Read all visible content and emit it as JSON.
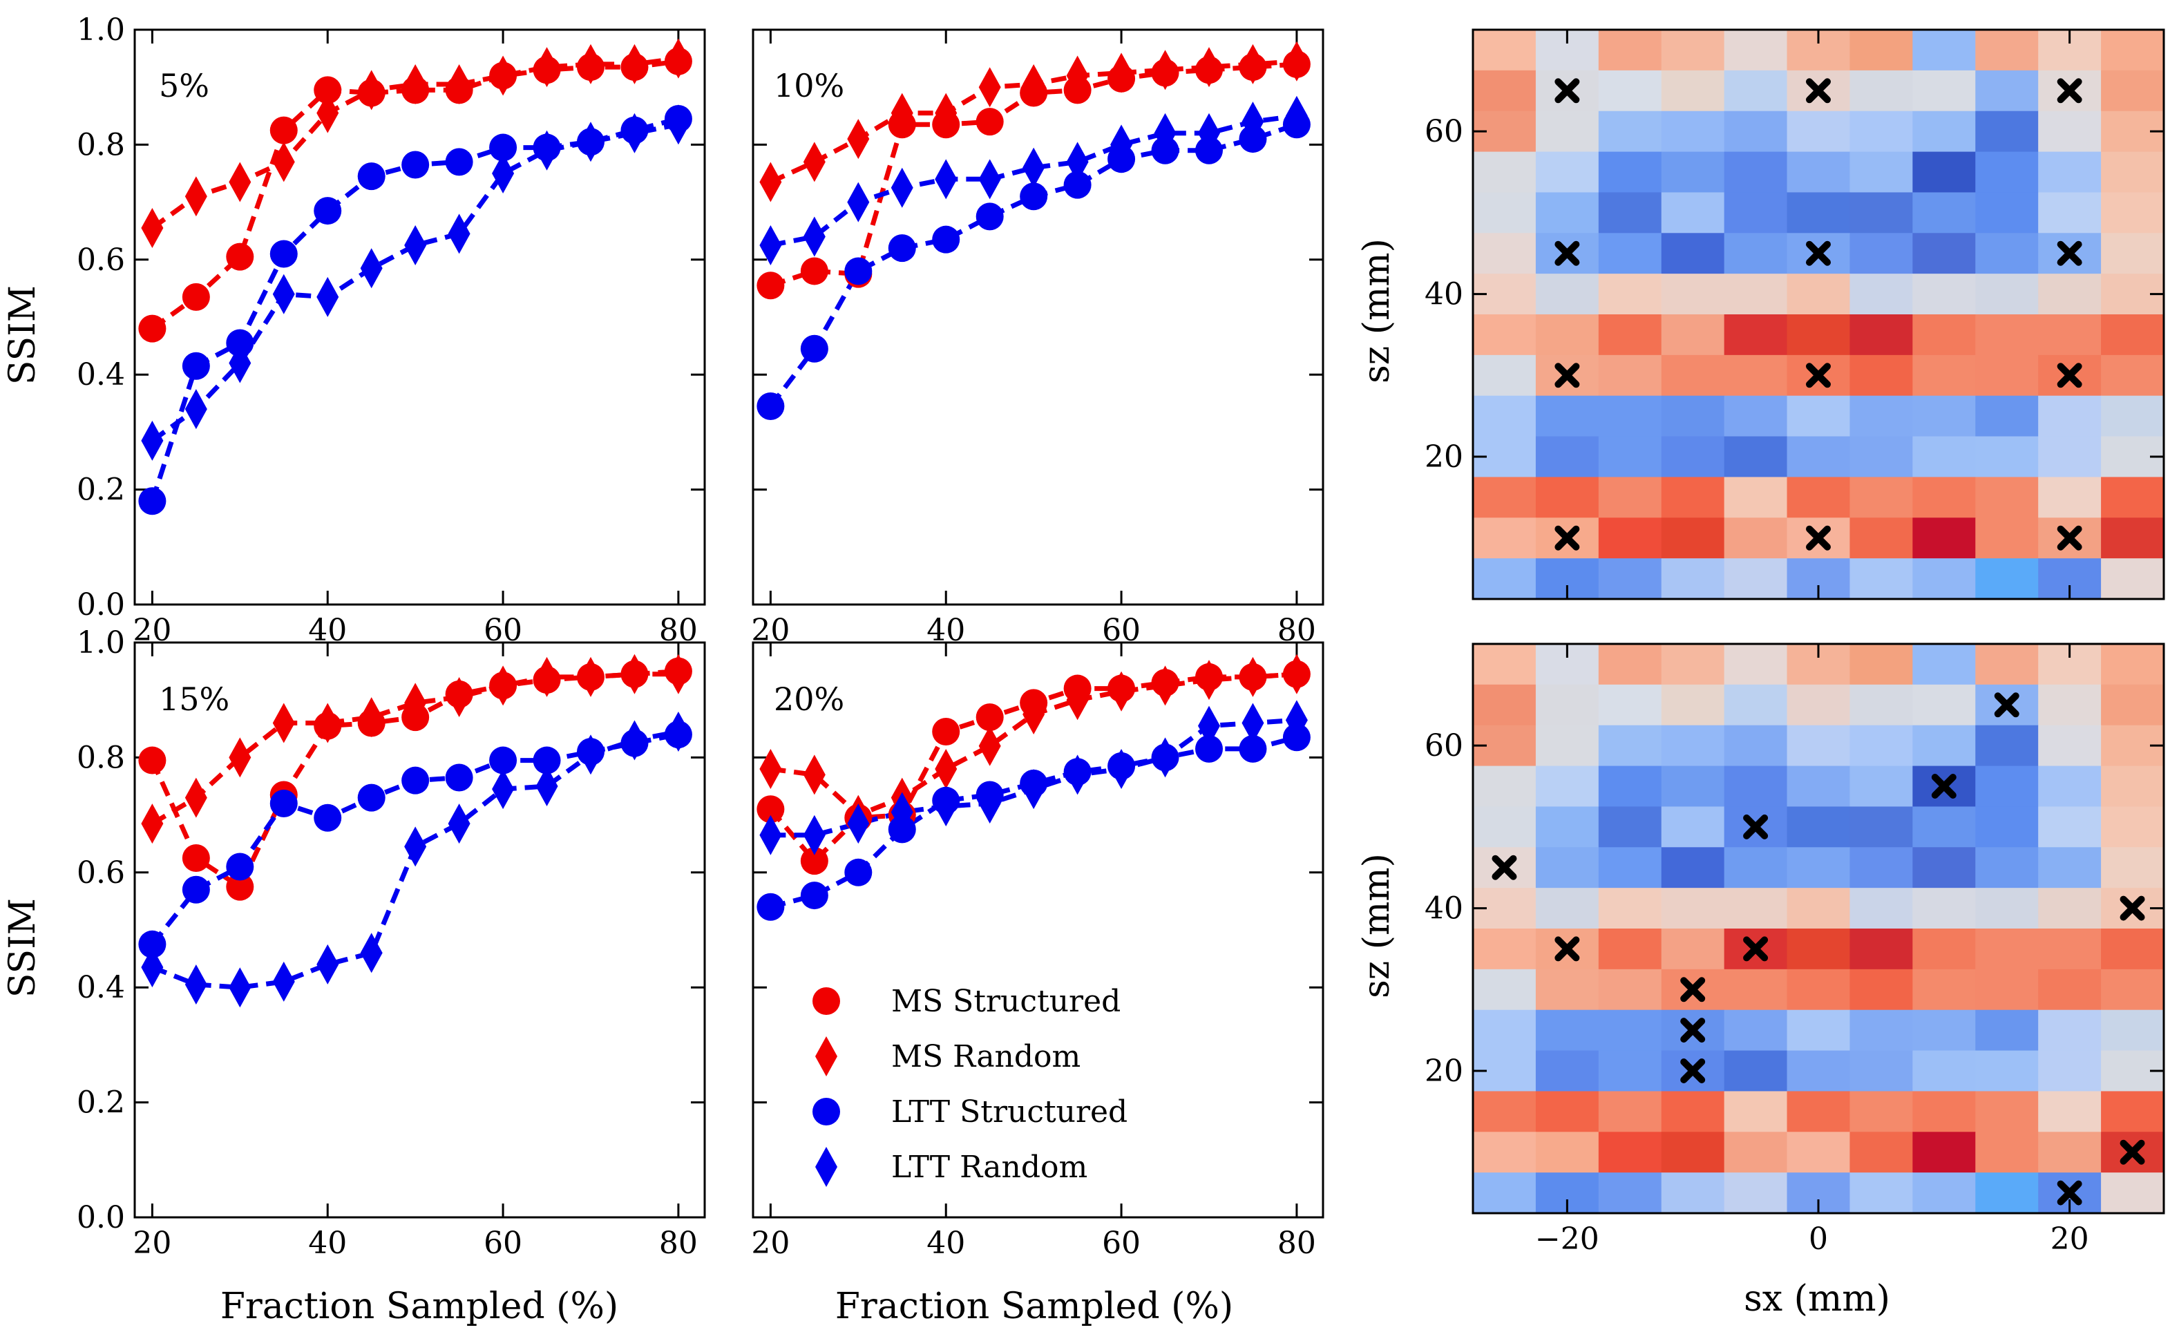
{
  "chart_data": {
    "type": "multi-panel",
    "colors": {
      "ms": "#f00000",
      "ltt": "#0000f0",
      "marker_x": "#000000"
    },
    "line_panels": [
      {
        "id": "p5",
        "label": "5%",
        "ylabel": "SSIM",
        "xlabel": "",
        "xticks": [
          20,
          40,
          60,
          80
        ],
        "yticks": [
          "0.0",
          "0.2",
          "0.4",
          "0.6",
          "0.8",
          "1.0"
        ],
        "xlim": [
          18,
          83
        ],
        "ylim": [
          0,
          1
        ],
        "x": [
          20,
          25,
          30,
          35,
          40,
          45,
          50,
          55,
          60,
          65,
          70,
          75,
          80
        ],
        "series": [
          {
            "name": "MS Structured",
            "color": "#f00000",
            "marker": "circle",
            "values": [
              0.48,
              0.535,
              0.605,
              0.825,
              0.895,
              0.89,
              0.895,
              0.895,
              0.92,
              0.93,
              0.935,
              0.935,
              0.945
            ]
          },
          {
            "name": "MS Random",
            "color": "#f00000",
            "marker": "diamond",
            "values": [
              0.655,
              0.71,
              0.735,
              0.77,
              0.855,
              0.895,
              0.905,
              0.905,
              0.92,
              0.935,
              0.94,
              0.94,
              0.95
            ]
          },
          {
            "name": "LTT Structured",
            "color": "#0000f0",
            "marker": "circle",
            "values": [
              0.18,
              0.415,
              0.455,
              0.61,
              0.685,
              0.745,
              0.765,
              0.77,
              0.795,
              0.795,
              0.805,
              0.825,
              0.845
            ]
          },
          {
            "name": "LTT Random",
            "color": "#0000f0",
            "marker": "diamond",
            "values": [
              0.285,
              0.34,
              0.42,
              0.54,
              0.535,
              0.585,
              0.625,
              0.645,
              0.75,
              0.79,
              0.805,
              0.82,
              0.835
            ]
          }
        ]
      },
      {
        "id": "p10",
        "label": "10%",
        "ylabel": "",
        "xlabel": "",
        "xticks": [
          20,
          40,
          60,
          80
        ],
        "yticks": [],
        "xlim": [
          18,
          83
        ],
        "ylim": [
          0,
          1
        ],
        "x": [
          20,
          25,
          30,
          35,
          40,
          45,
          50,
          55,
          60,
          65,
          70,
          75,
          80
        ],
        "series": [
          {
            "name": "MS Structured",
            "color": "#f00000",
            "marker": "circle",
            "values": [
              0.555,
              0.58,
              0.575,
              0.835,
              0.835,
              0.84,
              0.89,
              0.895,
              0.915,
              0.925,
              0.93,
              0.935,
              0.94
            ]
          },
          {
            "name": "MS Random",
            "color": "#f00000",
            "marker": "diamond",
            "values": [
              0.735,
              0.77,
              0.81,
              0.855,
              0.855,
              0.9,
              0.905,
              0.92,
              0.925,
              0.93,
              0.935,
              0.94,
              0.945
            ]
          },
          {
            "name": "LTT Structured",
            "color": "#0000f0",
            "marker": "circle",
            "values": [
              0.345,
              0.445,
              0.58,
              0.62,
              0.635,
              0.675,
              0.71,
              0.73,
              0.775,
              0.79,
              0.79,
              0.81,
              0.835
            ]
          },
          {
            "name": "LTT Random",
            "color": "#0000f0",
            "marker": "diamond",
            "values": [
              0.625,
              0.64,
              0.7,
              0.725,
              0.74,
              0.74,
              0.76,
              0.77,
              0.8,
              0.82,
              0.82,
              0.84,
              0.85
            ]
          }
        ]
      },
      {
        "id": "p15",
        "label": "15%",
        "ylabel": "SSIM",
        "xlabel": "Fraction Sampled (%)",
        "xticks": [
          20,
          40,
          60,
          80
        ],
        "yticks": [
          "0.0",
          "0.2",
          "0.4",
          "0.6",
          "0.8",
          "1.0"
        ],
        "xlim": [
          18,
          83
        ],
        "ylim": [
          0,
          1
        ],
        "x": [
          20,
          25,
          30,
          35,
          40,
          45,
          50,
          55,
          60,
          65,
          70,
          75,
          80
        ],
        "series": [
          {
            "name": "MS Structured",
            "color": "#f00000",
            "marker": "circle",
            "values": [
              0.795,
              0.625,
              0.575,
              0.735,
              0.855,
              0.86,
              0.87,
              0.91,
              0.925,
              0.935,
              0.94,
              0.945,
              0.95
            ]
          },
          {
            "name": "MS Random",
            "color": "#f00000",
            "marker": "diamond",
            "values": [
              0.685,
              0.73,
              0.8,
              0.86,
              0.86,
              0.87,
              0.895,
              0.905,
              0.925,
              0.94,
              0.94,
              0.945,
              0.945
            ]
          },
          {
            "name": "LTT Structured",
            "color": "#0000f0",
            "marker": "circle",
            "values": [
              0.475,
              0.57,
              0.61,
              0.72,
              0.695,
              0.73,
              0.76,
              0.765,
              0.795,
              0.795,
              0.81,
              0.825,
              0.84
            ]
          },
          {
            "name": "LTT Random",
            "color": "#0000f0",
            "marker": "diamond",
            "values": [
              0.435,
              0.405,
              0.4,
              0.41,
              0.44,
              0.46,
              0.645,
              0.685,
              0.745,
              0.75,
              0.805,
              0.83,
              0.845
            ]
          }
        ]
      },
      {
        "id": "p20",
        "label": "20%",
        "ylabel": "",
        "xlabel": "Fraction Sampled (%)",
        "xticks": [
          20,
          40,
          60,
          80
        ],
        "yticks": [],
        "xlim": [
          18,
          83
        ],
        "ylim": [
          0,
          1
        ],
        "x": [
          20,
          25,
          30,
          35,
          40,
          45,
          50,
          55,
          60,
          65,
          70,
          75,
          80
        ],
        "series": [
          {
            "name": "MS Structured",
            "color": "#f00000",
            "marker": "circle",
            "values": [
              0.71,
              0.62,
              0.695,
              0.7,
              0.845,
              0.87,
              0.895,
              0.92,
              0.92,
              0.93,
              0.94,
              0.94,
              0.945
            ]
          },
          {
            "name": "MS Random",
            "color": "#f00000",
            "marker": "diamond",
            "values": [
              0.78,
              0.77,
              0.7,
              0.73,
              0.78,
              0.82,
              0.875,
              0.9,
              0.915,
              0.925,
              0.935,
              0.94,
              0.945
            ]
          },
          {
            "name": "LTT Structured",
            "color": "#0000f0",
            "marker": "circle",
            "values": [
              0.54,
              0.56,
              0.6,
              0.675,
              0.725,
              0.735,
              0.755,
              0.775,
              0.785,
              0.8,
              0.815,
              0.815,
              0.835
            ]
          },
          {
            "name": "LTT Random",
            "color": "#0000f0",
            "marker": "diamond",
            "values": [
              0.665,
              0.665,
              0.685,
              0.705,
              0.715,
              0.72,
              0.745,
              0.77,
              0.78,
              0.8,
              0.855,
              0.86,
              0.865
            ]
          }
        ]
      }
    ],
    "legend": {
      "placement": "lower-right of 20% panel",
      "entries": [
        {
          "label": "MS Structured",
          "color": "#f00000",
          "marker": "circle"
        },
        {
          "label": "MS Random",
          "color": "#f00000",
          "marker": "diamond"
        },
        {
          "label": "LTT Structured",
          "color": "#0000f0",
          "marker": "circle"
        },
        {
          "label": "LTT Random",
          "color": "#0000f0",
          "marker": "diamond"
        }
      ]
    },
    "heatmaps": {
      "type": "heatmap",
      "xlabel": "sx (mm)",
      "ylabel": "sz (mm)",
      "xticks": [
        -20,
        0,
        20
      ],
      "yticks": [
        20,
        40,
        60
      ],
      "x_centers": [
        -25,
        -20,
        -15,
        -10,
        -5,
        0,
        5,
        10,
        15,
        20,
        25
      ],
      "z_centers": [
        70,
        65,
        60,
        55,
        50,
        45,
        40,
        35,
        30,
        25,
        20,
        15,
        10,
        5
      ],
      "cell_size_mm": 5,
      "grid": [
        [
          "#f8bba2",
          "#d9dce6",
          "#f5a689",
          "#f5b89f",
          "#e6d7d4",
          "#f5b398",
          "#f3a27f",
          "#94baf7",
          "#f4a98d",
          "#f2cdbd",
          "#f7ac8e"
        ],
        [
          "#f29072",
          "#d9dae0",
          "#d8dee8",
          "#e6d5cc",
          "#bcd1f0",
          "#e7d2cc",
          "#d5d9e2",
          "#d8dce4",
          "#8cb2f4",
          "#e2d9d8",
          "#f4a283"
        ],
        [
          "#f2987b",
          "#d9dbe1",
          "#9abef6",
          "#93b8f7",
          "#83abf4",
          "#b7cdf5",
          "#aac7f8",
          "#96bbf6",
          "#4d78e0",
          "#dbdbe2",
          "#f5b69b"
        ],
        [
          "#d9dbe1",
          "#b9d0f5",
          "#5d8df0",
          "#6f9cf1",
          "#5d88ec",
          "#83abf4",
          "#97bbf6",
          "#3456c8",
          "#5d8df0",
          "#a4c3f7",
          "#f4c1aa"
        ],
        [
          "#d6dbe4",
          "#8cb5f6",
          "#4f79e0",
          "#a0c1f7",
          "#5d88ec",
          "#4d79e0",
          "#5078dd",
          "#6795ef",
          "#5d8df0",
          "#bad0f5",
          "#f4c7b3"
        ],
        [
          "#e6d7d4",
          "#82acf4",
          "#6b9af3",
          "#4369d9",
          "#6f9cf1",
          "#7aa5f3",
          "#6690ee",
          "#4d6fd8",
          "#6d9af1",
          "#88b0f4",
          "#eed0c2"
        ],
        [
          "#f0cfc2",
          "#d0d6e3",
          "#f2cdbd",
          "#ebd0c6",
          "#ebd0c6",
          "#f3c2ad",
          "#cad4e8",
          "#d6d9e3",
          "#d0d6e3",
          "#e6d2cb",
          "#f2c6b3"
        ],
        [
          "#f8b095",
          "#f5a688",
          "#f37152",
          "#f4a286",
          "#dc3433",
          "#e4452f",
          "#d32b31",
          "#f37b5c",
          "#f4886a",
          "#f4886a",
          "#f26c4e"
        ],
        [
          "#d6dbe4",
          "#f4a88c",
          "#f4a286",
          "#f48a6b",
          "#f48a6b",
          "#f47b5c",
          "#f26548",
          "#f48a6b",
          "#f4886a",
          "#f37b5c",
          "#f48a6b"
        ],
        [
          "#a9c7f8",
          "#6b99f2",
          "#6b99f2",
          "#6693ee",
          "#7ca5f3",
          "#a8c6f7",
          "#83abf4",
          "#85adf4",
          "#6996ef",
          "#b9cef5",
          "#c8d5e8"
        ],
        [
          "#a9c7f8",
          "#5e89ec",
          "#6b99f2",
          "#5e89ec",
          "#4c76df",
          "#7ca5f3",
          "#80a8f3",
          "#9cbff7",
          "#9dc0f7",
          "#b9cef5",
          "#d6dae2"
        ],
        [
          "#f4795a",
          "#f36548",
          "#f4886a",
          "#f36548",
          "#f4c7b3",
          "#f36f50",
          "#f48a6b",
          "#f47b5c",
          "#f48a6b",
          "#efd2c6",
          "#f36548"
        ],
        [
          "#f8b39a",
          "#f7aa8c",
          "#f04d39",
          "#e6452f",
          "#f4a286",
          "#f7b39b",
          "#f26a4c",
          "#c8102c",
          "#f48a6b",
          "#f3a184",
          "#dd3b32"
        ],
        [
          "#90b7f7",
          "#5c8cee",
          "#6e99f1",
          "#a9c5f5",
          "#c1d0f0",
          "#779ff2",
          "#a8c6f7",
          "#91b7f6",
          "#5aaaf9",
          "#5e8aec",
          "#e6d7d4"
        ]
      ],
      "panels": [
        {
          "id": "structured-positions",
          "markers": [
            [
              -20,
              65
            ],
            [
              0,
              65
            ],
            [
              20,
              65
            ],
            [
              -20,
              45
            ],
            [
              0,
              45
            ],
            [
              20,
              45
            ],
            [
              -20,
              30
            ],
            [
              0,
              30
            ],
            [
              20,
              30
            ],
            [
              -20,
              10
            ],
            [
              0,
              10
            ],
            [
              20,
              10
            ]
          ]
        },
        {
          "id": "random-positions",
          "markers": [
            [
              15,
              65
            ],
            [
              10,
              55
            ],
            [
              -5,
              50
            ],
            [
              -25,
              45
            ],
            [
              25,
              40
            ],
            [
              -20,
              35
            ],
            [
              -5,
              35
            ],
            [
              -10,
              30
            ],
            [
              -10,
              25
            ],
            [
              -10,
              20
            ],
            [
              25,
              10
            ],
            [
              20,
              5
            ]
          ]
        }
      ]
    }
  }
}
